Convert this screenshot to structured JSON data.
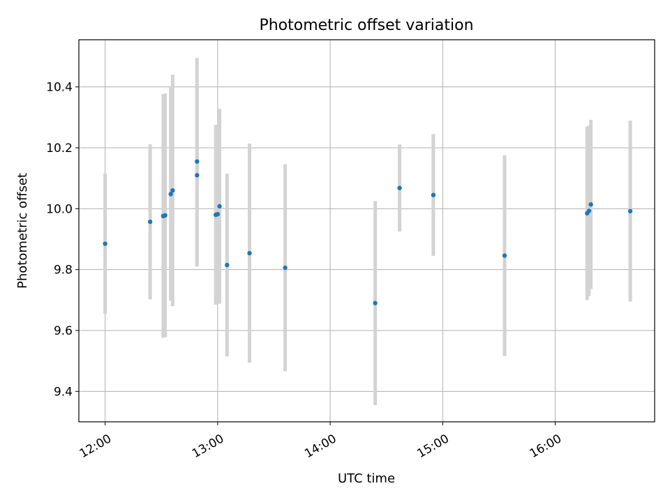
{
  "chart_data": {
    "type": "scatter",
    "title": "Photometric offset variation",
    "xlabel": "UTC time",
    "ylabel": "Photometric offset",
    "xlim": [
      "11:46",
      "16:53"
    ],
    "ylim": [
      9.3,
      10.555
    ],
    "xticks": [
      "12:00",
      "13:00",
      "14:00",
      "15:00",
      "16:00"
    ],
    "yticks": [
      9.4,
      9.6,
      9.8,
      10.0,
      10.2,
      10.4
    ],
    "grid": true,
    "colors": {
      "points": "#1f77b4",
      "errorbars": "#d3d3d3",
      "grid": "#b0b0b0"
    },
    "series": [
      {
        "points": [
          {
            "x": "12:00",
            "y": 9.885,
            "err": 0.23
          },
          {
            "x": "12:24",
            "y": 9.957,
            "err": 0.255
          },
          {
            "x": "12:31",
            "y": 9.976,
            "err": 0.4
          },
          {
            "x": "12:32",
            "y": 9.978,
            "err": 0.4
          },
          {
            "x": "12:35",
            "y": 10.048,
            "err": 0.35
          },
          {
            "x": "12:36",
            "y": 10.06,
            "err": 0.38
          },
          {
            "x": "12:49",
            "y": 10.155,
            "err": 0.34
          },
          {
            "x": "12:49",
            "y": 10.11,
            "err": 0.3
          },
          {
            "x": "12:59",
            "y": 9.98,
            "err": 0.295
          },
          {
            "x": "13:00",
            "y": 9.982,
            "err": 0.29
          },
          {
            "x": "13:01",
            "y": 10.008,
            "err": 0.32
          },
          {
            "x": "13:05",
            "y": 9.815,
            "err": 0.3
          },
          {
            "x": "13:17",
            "y": 9.854,
            "err": 0.36
          },
          {
            "x": "13:36",
            "y": 9.806,
            "err": 0.34
          },
          {
            "x": "14:24",
            "y": 9.69,
            "err": 0.335
          },
          {
            "x": "14:37",
            "y": 10.068,
            "err": 0.143
          },
          {
            "x": "14:55",
            "y": 10.045,
            "err": 0.2
          },
          {
            "x": "15:33",
            "y": 9.846,
            "err": 0.33
          },
          {
            "x": "16:17",
            "y": 9.985,
            "err": 0.285
          },
          {
            "x": "16:18",
            "y": 9.993,
            "err": 0.28
          },
          {
            "x": "16:19",
            "y": 10.014,
            "err": 0.278
          },
          {
            "x": "16:40",
            "y": 9.992,
            "err": 0.297
          }
        ]
      }
    ]
  }
}
